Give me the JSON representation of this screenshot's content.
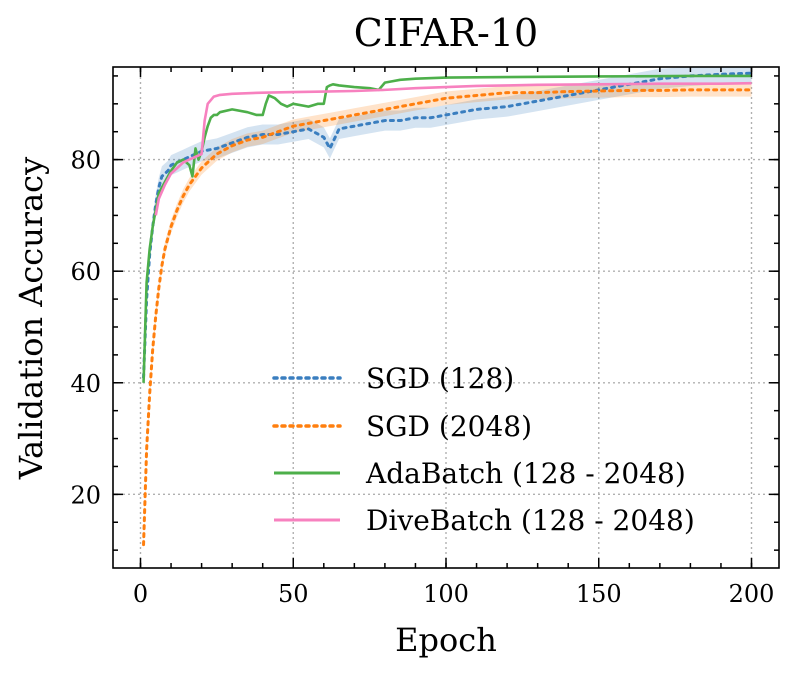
{
  "chart_data": {
    "type": "line",
    "title": "CIFAR-10",
    "xlabel": "Epoch",
    "ylabel": "Validation Accuracy",
    "xlim": [
      -9,
      209
    ],
    "ylim": [
      6.8,
      96.6
    ],
    "xticks": [
      0,
      50,
      100,
      150,
      200
    ],
    "yticks": [
      20,
      40,
      60,
      80
    ],
    "grid": true,
    "legend_position": "lower-right",
    "colors": {
      "sgd128": "#3a7ebf",
      "sgd2048": "#ff7f0e",
      "adabatch": "#4daf4a",
      "divebatch": "#f781bf"
    },
    "series": [
      {
        "name": "SGD (128)",
        "key": "sgd128",
        "style": "dotted",
        "band": 1.8,
        "x": [
          1,
          2,
          3,
          4,
          5,
          6,
          7,
          8,
          9,
          10,
          12,
          14,
          16,
          18,
          20,
          25,
          30,
          35,
          40,
          45,
          50,
          55,
          60,
          62,
          65,
          70,
          75,
          80,
          85,
          90,
          95,
          100,
          110,
          120,
          130,
          140,
          150,
          160,
          170,
          180,
          190,
          200
        ],
        "y": [
          41,
          55,
          63,
          68,
          72,
          75,
          77,
          77.5,
          78,
          79,
          79.5,
          80,
          80.5,
          81,
          81.5,
          82,
          83,
          84,
          84.5,
          84.5,
          85,
          85.5,
          84,
          82,
          85.5,
          86,
          86.5,
          87,
          87,
          87.5,
          87.5,
          88,
          89,
          89.5,
          90.5,
          91.5,
          92.5,
          93.5,
          94.5,
          95,
          95.3,
          95.5
        ]
      },
      {
        "name": "SGD (2048)",
        "key": "sgd2048",
        "style": "dotted",
        "band": 1.2,
        "x": [
          1,
          2,
          3,
          4,
          5,
          6,
          7,
          8,
          10,
          12,
          14,
          16,
          18,
          20,
          25,
          30,
          35,
          40,
          45,
          50,
          55,
          60,
          65,
          70,
          75,
          80,
          90,
          100,
          110,
          120,
          130,
          140,
          150,
          160,
          170,
          180,
          190,
          200
        ],
        "y": [
          11,
          28,
          38,
          46,
          52,
          57,
          61,
          64,
          68,
          71,
          73.5,
          75.5,
          77,
          78.5,
          81,
          82.5,
          83.5,
          84,
          85,
          86,
          86.5,
          87,
          87.5,
          88,
          88.5,
          89,
          90,
          91,
          91.5,
          92,
          92,
          92.2,
          92.3,
          92.4,
          92.4,
          92.5,
          92.5,
          92.5
        ]
      },
      {
        "name": "AdaBatch (128 - 2048)",
        "key": "adabatch",
        "style": "solid",
        "band": 0,
        "x": [
          1,
          2,
          3,
          4,
          5,
          6,
          8,
          10,
          12,
          14,
          16,
          17,
          18,
          19,
          20,
          21,
          22,
          23,
          24,
          25,
          26,
          30,
          35,
          38,
          40,
          41,
          42,
          44,
          46,
          48,
          50,
          55,
          58,
          60,
          61,
          62,
          63,
          65,
          70,
          75,
          78,
          80,
          82,
          85,
          90,
          100,
          120,
          150,
          180,
          200
        ],
        "y": [
          40,
          58,
          64,
          68,
          71,
          74,
          76,
          78,
          79.5,
          80,
          79,
          77,
          82,
          80,
          81.5,
          84,
          86,
          87.5,
          88,
          88,
          88.5,
          89,
          88.5,
          88,
          88,
          90,
          91.5,
          91,
          90,
          89.5,
          90,
          89.5,
          90,
          90,
          93,
          93.3,
          93.5,
          93.3,
          93,
          92.8,
          92.5,
          93.8,
          94,
          94.3,
          94.5,
          94.7,
          94.8,
          94.9,
          95,
          95
        ]
      },
      {
        "name": "DiveBatch (128 - 2048)",
        "key": "divebatch",
        "style": "solid",
        "band": 0,
        "x": [
          5,
          6,
          8,
          10,
          12,
          14,
          16,
          18,
          20,
          21,
          22,
          24,
          26,
          30,
          40,
          50,
          60,
          70,
          80,
          90,
          100,
          110,
          120,
          130,
          150,
          170,
          190,
          200
        ],
        "y": [
          70,
          73,
          75.5,
          77.5,
          78.5,
          79.5,
          80,
          80.5,
          81,
          87,
          90,
          91.3,
          91.6,
          91.8,
          92,
          92.1,
          92.2,
          92.3,
          92.5,
          92.8,
          93,
          93.2,
          93.3,
          93.4,
          93.5,
          93.6,
          93.6,
          93.7
        ]
      }
    ]
  }
}
